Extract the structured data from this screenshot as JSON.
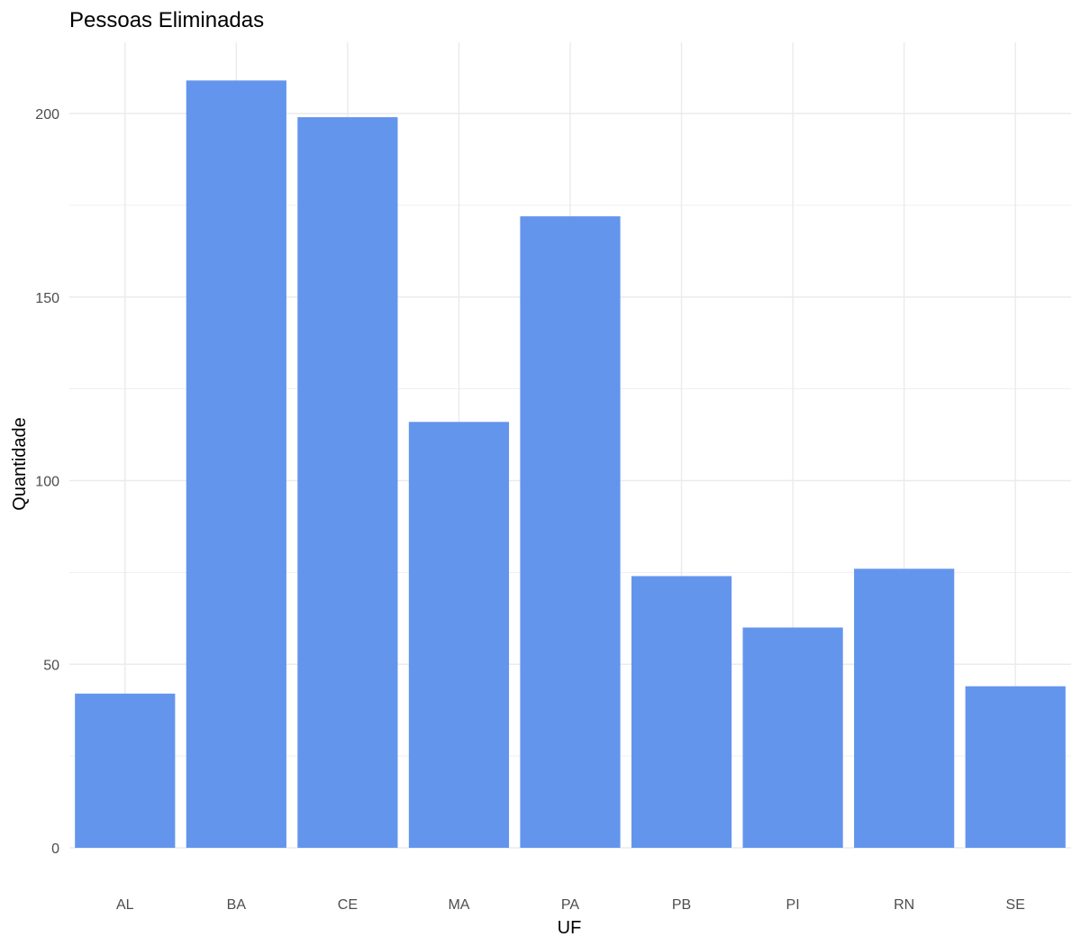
{
  "chart_data": {
    "type": "bar",
    "title": "Pessoas Eliminadas",
    "xlabel": "UF",
    "ylabel": "Quantidade",
    "categories": [
      "AL",
      "BA",
      "CE",
      "MA",
      "PA",
      "PB",
      "PI",
      "RN",
      "SE"
    ],
    "values": [
      42,
      209,
      199,
      116,
      172,
      74,
      60,
      76,
      44
    ],
    "ylim": [
      0,
      220
    ],
    "y_ticks": [
      0,
      50,
      100,
      150,
      200
    ],
    "grid": true,
    "legend": "none",
    "bar_color": "#6495ED",
    "grid_color": "#EBEBEB"
  }
}
